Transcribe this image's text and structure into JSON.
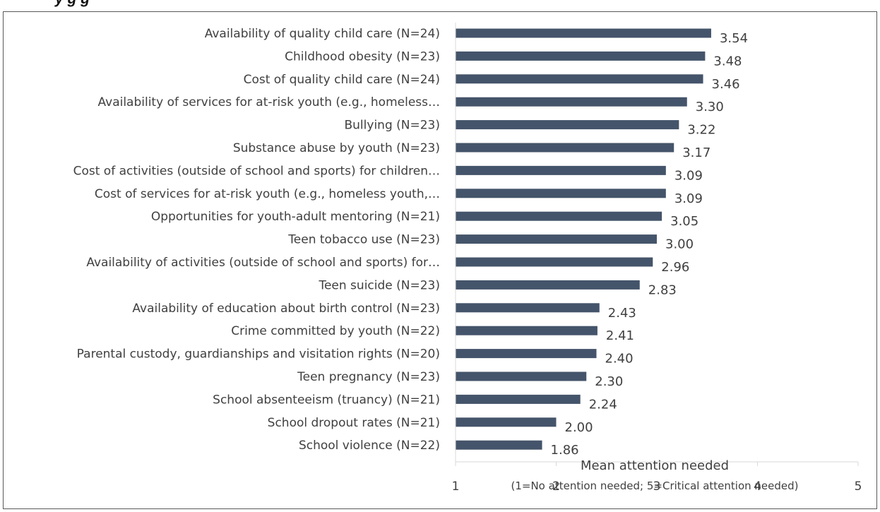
{
  "header": {
    "visible_title_fragment": "y          g   g"
  },
  "colors": {
    "bar": "#44546A",
    "text": "#404040",
    "axis": "#D9D9D9",
    "frame": "#595959"
  },
  "chart_data": {
    "type": "bar",
    "orientation": "horizontal",
    "categories": [
      "Availability of quality child care (N=24)",
      "Childhood obesity (N=23)",
      "Cost of quality child care (N=24)",
      "Availability of services for at-risk youth (e.g., homeless…",
      "Bullying (N=23)",
      "Substance abuse by youth (N=23)",
      "Cost of activities (outside of school and sports) for children…",
      "Cost of services for at-risk youth (e.g., homeless youth,…",
      "Opportunities for youth-adult mentoring (N=21)",
      "Teen tobacco use (N=23)",
      "Availability of activities (outside of school and sports) for…",
      "Teen suicide (N=23)",
      "Availability of education about birth control (N=23)",
      "Crime committed by youth (N=22)",
      "Parental custody, guardianships and visitation rights (N=20)",
      "Teen pregnancy (N=23)",
      "School absenteeism (truancy) (N=21)",
      "School dropout rates (N=21)",
      "School violence (N=22)"
    ],
    "values": [
      3.54,
      3.48,
      3.46,
      3.3,
      3.22,
      3.17,
      3.09,
      3.09,
      3.05,
      3.0,
      2.96,
      2.83,
      2.43,
      2.41,
      2.4,
      2.3,
      2.24,
      2.0,
      1.86
    ],
    "value_labels": [
      "3.54",
      "3.48",
      "3.46",
      "3.30",
      "3.22",
      "3.17",
      "3.09",
      "3.09",
      "3.05",
      "3.00",
      "2.96",
      "2.83",
      "2.43",
      "2.41",
      "2.40",
      "2.30",
      "2.24",
      "2.00",
      "1.86"
    ],
    "xlim": [
      1,
      5
    ],
    "xticks": [
      "1",
      "2",
      "3",
      "4",
      "5"
    ],
    "xlabel": "Mean attention needed",
    "xlabel_sub": "(1=No attention needed; 5=Critical attention needed)",
    "grid": false,
    "legend": "none"
  }
}
